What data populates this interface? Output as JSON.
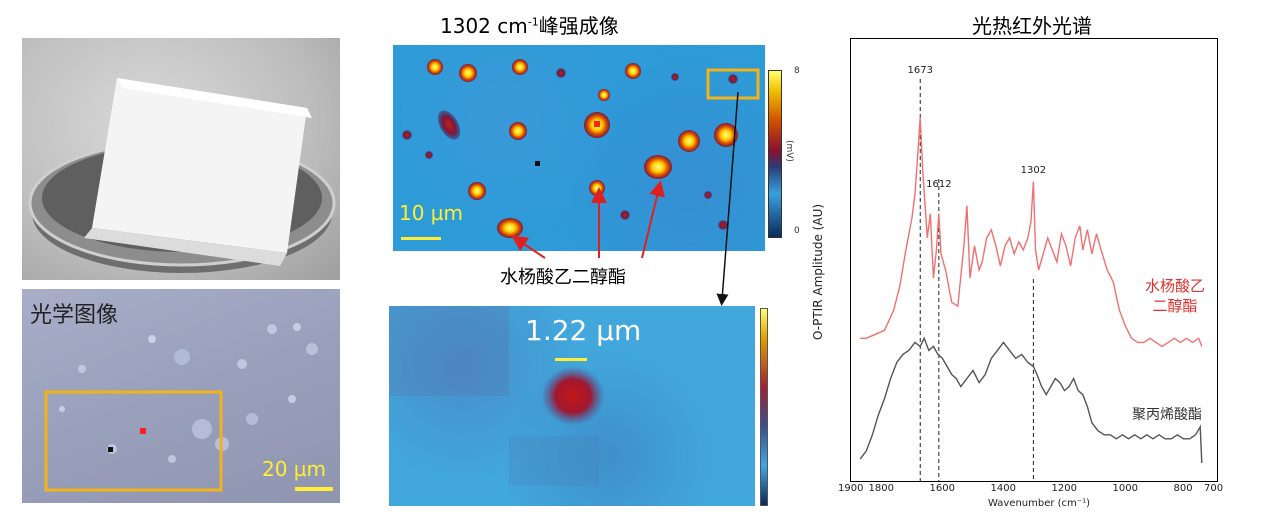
{
  "titles": {
    "imaging_prefix": "1302 cm",
    "imaging_sup": "-1",
    "imaging_suffix": "峰强成像",
    "spectrum": "光热红外光谱"
  },
  "optical": {
    "title": "光学图像",
    "scalebar": "20 µm"
  },
  "map": {
    "scalebar": "10 µm",
    "colorbar_max": "8",
    "colorbar_min": "0",
    "colorbar_unit": "(mV)",
    "annotation": "水杨酸乙二醇酯"
  },
  "zoom": {
    "size_label": "1.22 µm"
  },
  "colors": {
    "accent_orange": "#f2b21a",
    "scalebar_yellow": "#ffee33",
    "red_marker": "#ff2020",
    "spectrum_red": "#f07070",
    "spectrum_gray": "#555555"
  },
  "chart_data": {
    "type": "line",
    "title": "光热红外光谱",
    "xlabel": "Wavenumber (cm⁻¹)",
    "ylabel": "O-PTIR Amplitude (AU)",
    "xlim": [
      1900,
      700
    ],
    "ylim": [
      0,
      10
    ],
    "x_ticks": [
      1900,
      1800,
      1600,
      1400,
      1200,
      1000,
      800,
      700
    ],
    "peak_markers": [
      {
        "x": 1673,
        "label": "1673"
      },
      {
        "x": 1612,
        "label": "1612"
      },
      {
        "x": 1302,
        "label": "1302"
      }
    ],
    "series": [
      {
        "name": "水杨酸乙二醇酯",
        "color": "#f07070",
        "x": [
          1870,
          1850,
          1820,
          1790,
          1760,
          1740,
          1720,
          1700,
          1690,
          1680,
          1673,
          1665,
          1650,
          1640,
          1630,
          1620,
          1612,
          1605,
          1590,
          1570,
          1550,
          1530,
          1520,
          1510,
          1495,
          1480,
          1470,
          1455,
          1440,
          1425,
          1410,
          1395,
          1380,
          1365,
          1350,
          1335,
          1320,
          1310,
          1302,
          1295,
          1285,
          1270,
          1255,
          1240,
          1225,
          1210,
          1195,
          1180,
          1165,
          1150,
          1140,
          1125,
          1110,
          1095,
          1080,
          1060,
          1040,
          1020,
          1000,
          980,
          960,
          940,
          920,
          900,
          880,
          860,
          840,
          820,
          800,
          780,
          760,
          750
        ],
        "values": [
          3.3,
          3.3,
          3.4,
          3.5,
          4.0,
          4.6,
          5.5,
          6.3,
          6.9,
          8.0,
          8.8,
          7.5,
          5.8,
          6.4,
          4.8,
          5.5,
          6.4,
          5.4,
          5.0,
          4.2,
          4.1,
          5.6,
          6.6,
          4.8,
          5.6,
          5.0,
          5.2,
          5.8,
          6.0,
          5.6,
          5.1,
          5.6,
          5.8,
          5.4,
          5.7,
          5.5,
          5.8,
          6.2,
          7.2,
          5.5,
          5.0,
          5.4,
          5.8,
          5.5,
          5.2,
          5.9,
          5.6,
          5.1,
          5.8,
          6.1,
          5.5,
          6.0,
          5.4,
          5.9,
          5.5,
          5.0,
          4.7,
          4.0,
          3.6,
          3.3,
          3.2,
          3.2,
          3.3,
          3.2,
          3.1,
          3.2,
          3.3,
          3.2,
          3.3,
          3.2,
          3.3,
          3.1
        ]
      },
      {
        "name": "聚丙烯酸酯",
        "color": "#555555",
        "x": [
          1870,
          1850,
          1830,
          1810,
          1790,
          1770,
          1750,
          1730,
          1710,
          1690,
          1673,
          1660,
          1645,
          1630,
          1615,
          1600,
          1585,
          1570,
          1555,
          1540,
          1520,
          1500,
          1480,
          1460,
          1440,
          1420,
          1400,
          1380,
          1360,
          1340,
          1320,
          1302,
          1290,
          1275,
          1260,
          1245,
          1230,
          1215,
          1200,
          1185,
          1170,
          1155,
          1140,
          1125,
          1110,
          1090,
          1070,
          1050,
          1030,
          1010,
          990,
          970,
          950,
          930,
          910,
          890,
          870,
          850,
          830,
          810,
          790,
          770,
          755,
          750
        ],
        "values": [
          0.3,
          0.5,
          0.9,
          1.4,
          1.8,
          2.3,
          2.7,
          2.9,
          3.0,
          3.2,
          3.1,
          3.3,
          3.0,
          3.1,
          2.9,
          2.8,
          2.6,
          2.4,
          2.3,
          2.1,
          2.3,
          2.5,
          2.2,
          2.4,
          2.8,
          3.0,
          3.2,
          3.0,
          2.8,
          2.9,
          2.7,
          2.6,
          2.4,
          2.1,
          1.9,
          2.1,
          2.3,
          2.2,
          2.0,
          2.1,
          2.3,
          2.0,
          1.9,
          1.6,
          1.2,
          1.0,
          0.9,
          0.9,
          0.8,
          0.9,
          0.8,
          0.9,
          0.8,
          0.9,
          0.8,
          0.9,
          0.8,
          0.8,
          0.9,
          0.8,
          0.8,
          0.9,
          1.1,
          0.2
        ]
      }
    ]
  }
}
